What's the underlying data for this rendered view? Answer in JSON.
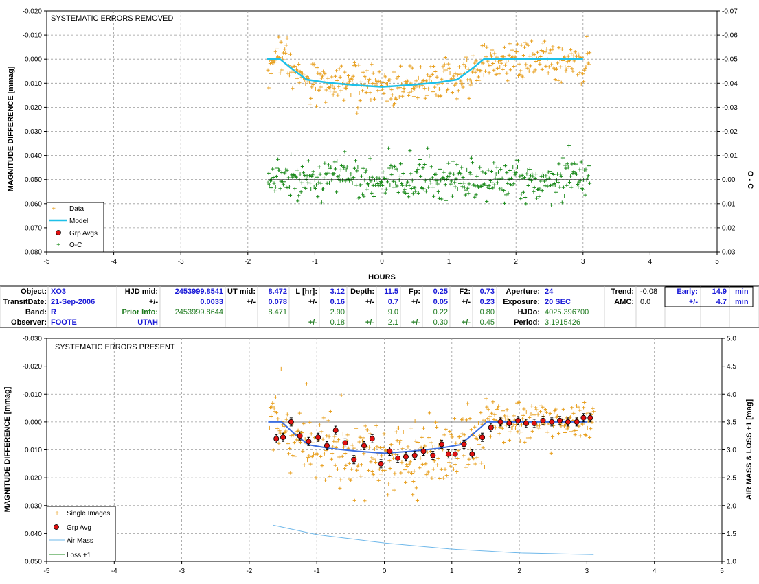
{
  "top_panel": {
    "title": "SYSTEMATIC ERRORS REMOVED",
    "ylabel_left": "MAGNITUDE DIFFERENCE [mmag]",
    "ylabel_right": "O - C",
    "xlabel": "HOURS",
    "legend": [
      "Data",
      "Model",
      "Grp Avgs",
      "O-C"
    ]
  },
  "bottom_panel": {
    "title": "SYSTEMATIC ERRORS PRESENT",
    "ylabel_left": "MAGNITUDE DIFFERENCE [mmag]",
    "ylabel_right": "AIR MASS & LOSS +1 [mag]",
    "legend": [
      "Single Images",
      "Grp Avg",
      "Air Mass",
      "Loss +1"
    ]
  },
  "colors": {
    "data": "#e8a020",
    "model": "#1ec0e8",
    "model_bottom": "#3c6ee0",
    "grp": "#e01010",
    "oc": "#1a8a1a",
    "airmass": "#6fb8ea",
    "grid": "#9a9a9a"
  },
  "info_table": {
    "rows": [
      [
        {
          "t": "Object:",
          "c": "lab"
        },
        {
          "t": "XO3",
          "c": "val"
        },
        {
          "t": "HJD mid:",
          "c": "lab"
        },
        {
          "t": "2453999.8541",
          "c": "val"
        },
        {
          "t": "UT mid:",
          "c": "lab"
        },
        {
          "t": "8.472",
          "c": "val"
        },
        {
          "t": "L [hr]:",
          "c": "lab"
        },
        {
          "t": "3.12",
          "c": "val"
        },
        {
          "t": "Depth:",
          "c": "lab"
        },
        {
          "t": "11.5",
          "c": "val"
        },
        {
          "t": "Fp:",
          "c": "lab"
        },
        {
          "t": "0.25",
          "c": "val"
        },
        {
          "t": "F2:",
          "c": "lab"
        },
        {
          "t": "0.73",
          "c": "val"
        },
        {
          "t": "Aperture:",
          "c": "lab"
        },
        {
          "t": "24",
          "c": "val"
        },
        {
          "t": "Trend:",
          "c": "lab"
        },
        {
          "t": "-0.08",
          "c": "blk"
        },
        {
          "t": "Early:",
          "c": "val"
        },
        {
          "t": "14.9",
          "c": "val"
        },
        {
          "t": "min",
          "c": "val"
        }
      ],
      [
        {
          "t": "TransitDate:",
          "c": "lab"
        },
        {
          "t": "21-Sep-2006",
          "c": "val"
        },
        {
          "t": "+/-",
          "c": "lab"
        },
        {
          "t": "0.0033",
          "c": "val"
        },
        {
          "t": "+/-",
          "c": "lab"
        },
        {
          "t": "0.078",
          "c": "val"
        },
        {
          "t": "+/-",
          "c": "lab"
        },
        {
          "t": "0.16",
          "c": "val"
        },
        {
          "t": "+/-",
          "c": "lab"
        },
        {
          "t": "0.7",
          "c": "val"
        },
        {
          "t": "+/-",
          "c": "lab"
        },
        {
          "t": "0.05",
          "c": "val"
        },
        {
          "t": "+/-",
          "c": "lab"
        },
        {
          "t": "0.23",
          "c": "val"
        },
        {
          "t": "Exposure:",
          "c": "lab"
        },
        {
          "t": "20 SEC",
          "c": "val"
        },
        {
          "t": "AMC:",
          "c": "lab"
        },
        {
          "t": "0.0",
          "c": "blk"
        },
        {
          "t": "+/-",
          "c": "val"
        },
        {
          "t": "4.7",
          "c": "val"
        },
        {
          "t": "min",
          "c": "val"
        }
      ],
      [
        {
          "t": "Band:",
          "c": "lab"
        },
        {
          "t": "R",
          "c": "val"
        },
        {
          "t": "Prior Info:",
          "c": "prib"
        },
        {
          "t": "2453999.8644",
          "c": "pri"
        },
        {
          "t": "",
          "c": "blk"
        },
        {
          "t": "8.471",
          "c": "pri"
        },
        {
          "t": "",
          "c": "blk"
        },
        {
          "t": "2.90",
          "c": "pri"
        },
        {
          "t": "",
          "c": "blk"
        },
        {
          "t": "9.0",
          "c": "pri"
        },
        {
          "t": "",
          "c": "blk"
        },
        {
          "t": "0.22",
          "c": "pri"
        },
        {
          "t": "",
          "c": "blk"
        },
        {
          "t": "0.80",
          "c": "pri"
        },
        {
          "t": "HJDo:",
          "c": "lab"
        },
        {
          "t": "4025.396700",
          "c": "pri"
        },
        {
          "t": "",
          "c": "blk"
        },
        {
          "t": "",
          "c": "blk"
        },
        {
          "t": "",
          "c": "blk"
        },
        {
          "t": "",
          "c": "blk"
        },
        {
          "t": "",
          "c": "blk"
        }
      ],
      [
        {
          "t": "Observer:",
          "c": "lab"
        },
        {
          "t": "FOOTE",
          "c": "val"
        },
        {
          "t": "UTAH",
          "c": "val"
        },
        {
          "t": "",
          "c": "blk"
        },
        {
          "t": "",
          "c": "blk"
        },
        {
          "t": "",
          "c": "blk"
        },
        {
          "t": "+/-",
          "c": "prib"
        },
        {
          "t": "0.18",
          "c": "pri"
        },
        {
          "t": "+/-",
          "c": "prib"
        },
        {
          "t": "2.1",
          "c": "pri"
        },
        {
          "t": "+/-",
          "c": "prib"
        },
        {
          "t": "0.30",
          "c": "pri"
        },
        {
          "t": "+/-",
          "c": "prib"
        },
        {
          "t": "0.45",
          "c": "pri"
        },
        {
          "t": "Period:",
          "c": "lab"
        },
        {
          "t": "3.1915426",
          "c": "pri"
        },
        {
          "t": "",
          "c": "blk"
        },
        {
          "t": "",
          "c": "blk"
        },
        {
          "t": "",
          "c": "blk"
        },
        {
          "t": "",
          "c": "blk"
        },
        {
          "t": "",
          "c": "blk"
        }
      ]
    ]
  },
  "chart_data": [
    {
      "type": "scatter",
      "title": "SYSTEMATIC ERRORS REMOVED",
      "xlabel": "HOURS",
      "ylabel": "MAGNITUDE DIFFERENCE [mmag]",
      "ylabel_right": "O - C",
      "xlim": [
        -5,
        5
      ],
      "ylim": [
        -0.02,
        0.08
      ],
      "y_inverted": true,
      "ylim_right": [
        -0.07,
        0.03
      ],
      "x_ticks": [
        "-5",
        "-4",
        "-3",
        "-2",
        "-1",
        "0",
        "1",
        "2",
        "3",
        "4",
        "5"
      ],
      "y_ticks": [
        "-0.020",
        "-0.010",
        "0.000",
        "0.010",
        "0.020",
        "0.030",
        "0.040",
        "0.050",
        "0.060",
        "0.070",
        "0.080"
      ],
      "y_ticks_right": [
        "-0.07",
        "-0.06",
        "-0.05",
        "-0.04",
        "-0.03",
        "-0.02",
        "-0.01",
        "0.00",
        "0.01",
        "0.02",
        "0.03"
      ],
      "grid": true,
      "legend_position": "bottom-left",
      "series": [
        {
          "name": "Data",
          "data_range_x": [
            -1.7,
            3.1
          ],
          "scatter_sigma": 0.004
        },
        {
          "name": "Model",
          "x": [
            -1.72,
            -1.52,
            -1.32,
            -1.12,
            -0.8,
            -0.4,
            0.0,
            0.4,
            0.8,
            1.12,
            1.32,
            1.52,
            1.72,
            2.2,
            2.6,
            3.0
          ],
          "y": [
            0.0,
            0.0,
            0.0045,
            0.0085,
            0.0098,
            0.0108,
            0.0115,
            0.0108,
            0.0098,
            0.0085,
            0.0045,
            0.0,
            0.0,
            0.0,
            0.0,
            0.0
          ]
        },
        {
          "name": "Grp Avgs",
          "x": [],
          "y": []
        },
        {
          "name": "O-C",
          "data_range_x": [
            -1.7,
            3.1
          ],
          "offset": 0.05,
          "scatter_sigma": 0.004
        }
      ]
    },
    {
      "type": "scatter",
      "title": "SYSTEMATIC ERRORS PRESENT",
      "xlabel": "",
      "ylabel": "MAGNITUDE DIFFERENCE [mmag]",
      "ylabel_right": "AIR MASS & LOSS +1 [mag]",
      "xlim": [
        -5,
        5
      ],
      "ylim": [
        -0.03,
        0.05
      ],
      "y_inverted": true,
      "ylim_right": [
        1.0,
        5.0
      ],
      "x_ticks": [
        "-5",
        "-4",
        "-3",
        "-2",
        "-1",
        "0",
        "1",
        "2",
        "3",
        "4",
        "5"
      ],
      "y_ticks": [
        "-0.030",
        "-0.020",
        "-0.010",
        "0.000",
        "0.010",
        "0.020",
        "0.030",
        "0.040",
        "0.050"
      ],
      "y_ticks_right": [
        "5.0",
        "4.5",
        "4.0",
        "3.5",
        "3.0",
        "2.5",
        "2.0",
        "1.5",
        "1.0"
      ],
      "grid": true,
      "legend_position": "bottom-left",
      "series": [
        {
          "name": "Single Images",
          "data_range_x": [
            -1.7,
            3.1
          ],
          "scatter_sigma": 0.006
        },
        {
          "name": "Grp Avg",
          "x": [
            -1.6,
            -1.5,
            -1.38,
            -1.25,
            -1.12,
            -0.98,
            -0.85,
            -0.72,
            -0.58,
            -0.45,
            -0.3,
            -0.18,
            -0.05,
            0.08,
            0.2,
            0.32,
            0.45,
            0.58,
            0.72,
            0.85,
            0.95,
            1.05,
            1.18,
            1.3,
            1.45,
            1.58,
            1.72,
            1.85,
            1.98,
            2.1,
            2.22,
            2.35,
            2.48,
            2.6,
            2.72,
            2.85,
            2.95,
            3.05
          ],
          "y": [
            0.006,
            0.0055,
            0.0,
            0.005,
            0.007,
            0.0055,
            0.0085,
            0.003,
            0.0075,
            0.0135,
            0.0085,
            0.006,
            0.015,
            0.0105,
            0.013,
            0.0125,
            0.012,
            0.0105,
            0.012,
            0.008,
            0.0115,
            0.0115,
            0.008,
            0.0115,
            0.0055,
            0.002,
            0.0,
            0.0005,
            -0.0005,
            0.0005,
            0.0005,
            -0.0005,
            0.0,
            -0.0005,
            0.0,
            0.0,
            -0.0015,
            -0.0015
          ]
        },
        {
          "name": "Air Mass",
          "x": [
            -1.65,
            -1.0,
            0.0,
            1.0,
            2.0,
            3.1
          ],
          "y": [
            1.65,
            1.48,
            1.33,
            1.22,
            1.15,
            1.12
          ]
        },
        {
          "name": "Loss +1",
          "x": [],
          "y": []
        }
      ]
    }
  ]
}
